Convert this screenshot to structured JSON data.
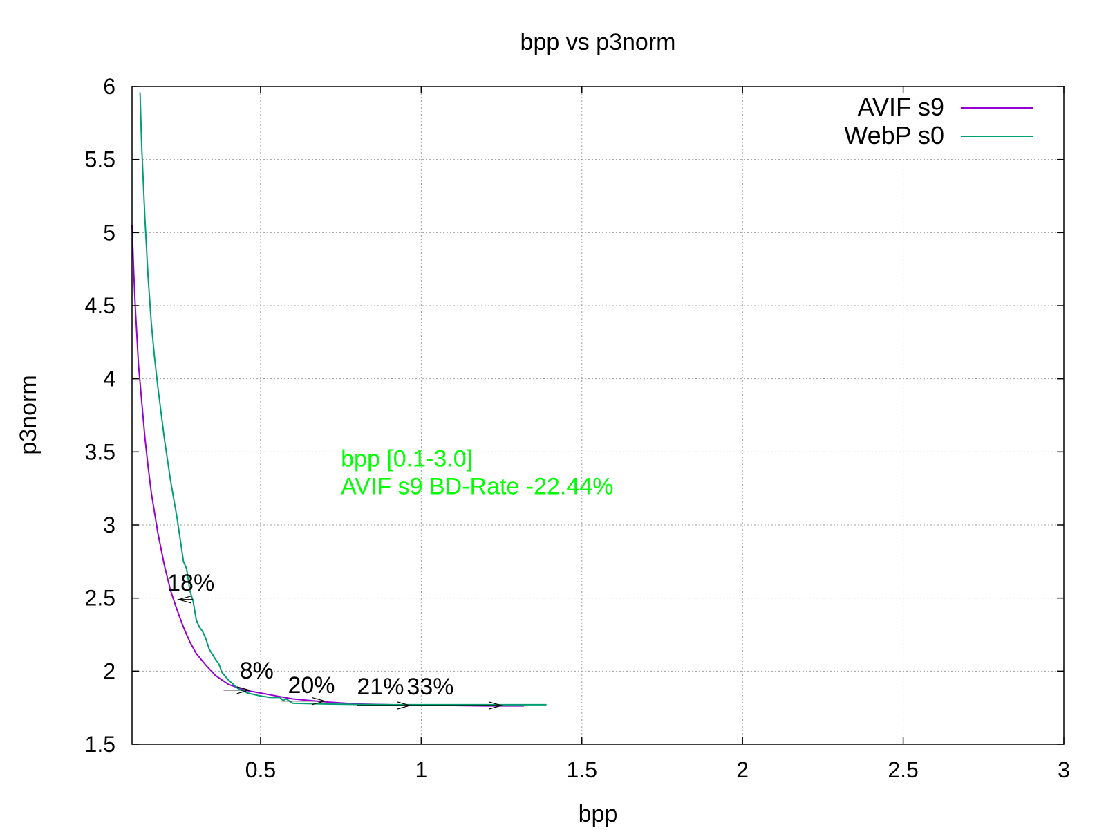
{
  "chart_data": {
    "type": "line",
    "title": "bpp vs p3norm",
    "xlabel": "bpp",
    "ylabel": "p3norm",
    "xlim": [
      0.1,
      3.0
    ],
    "ylim": [
      1.5,
      6.0
    ],
    "xticks": [
      {
        "value": 0.5,
        "label": "0.5"
      },
      {
        "value": 1.0,
        "label": "1"
      },
      {
        "value": 1.5,
        "label": "1.5"
      },
      {
        "value": 2.0,
        "label": "2"
      },
      {
        "value": 2.5,
        "label": "2.5"
      },
      {
        "value": 3.0,
        "label": "3"
      }
    ],
    "yticks": [
      {
        "value": 1.5,
        "label": "1.5"
      },
      {
        "value": 2.0,
        "label": "2"
      },
      {
        "value": 2.5,
        "label": "2.5"
      },
      {
        "value": 3.0,
        "label": "3"
      },
      {
        "value": 3.5,
        "label": "3.5"
      },
      {
        "value": 4.0,
        "label": "4"
      },
      {
        "value": 4.5,
        "label": "4.5"
      },
      {
        "value": 5.0,
        "label": "5"
      },
      {
        "value": 5.5,
        "label": "5.5"
      },
      {
        "value": 6.0,
        "label": "6"
      }
    ],
    "grid": true,
    "legend_position": "top-right",
    "series": [
      {
        "name": "AVIF s9",
        "color": "#9400d3",
        "x": [
          0.1,
          0.105,
          0.11,
          0.12,
          0.13,
          0.14,
          0.15,
          0.16,
          0.18,
          0.2,
          0.22,
          0.24,
          0.26,
          0.28,
          0.3,
          0.33,
          0.36,
          0.4,
          0.45,
          0.5,
          0.55,
          0.6,
          0.7,
          0.8,
          0.9,
          1.0,
          1.1,
          1.2,
          1.3,
          1.32
        ],
        "y": [
          5.05,
          4.75,
          4.5,
          4.1,
          3.85,
          3.6,
          3.4,
          3.22,
          2.95,
          2.73,
          2.55,
          2.42,
          2.3,
          2.2,
          2.12,
          2.04,
          1.97,
          1.91,
          1.87,
          1.85,
          1.83,
          1.81,
          1.79,
          1.775,
          1.77,
          1.765,
          1.765,
          1.762,
          1.762,
          1.762
        ]
      },
      {
        "name": "WebP s0",
        "color": "#009e73",
        "x": [
          0.125,
          0.13,
          0.14,
          0.15,
          0.16,
          0.17,
          0.18,
          0.2,
          0.22,
          0.24,
          0.26,
          0.27,
          0.28,
          0.29,
          0.3,
          0.31,
          0.32,
          0.33,
          0.34,
          0.36,
          0.37,
          0.38,
          0.4,
          0.43,
          0.46,
          0.5,
          0.53,
          0.56,
          0.57,
          0.58,
          0.6,
          0.7,
          0.8,
          0.9,
          1.0,
          1.2,
          1.39
        ],
        "y": [
          5.96,
          5.6,
          5.1,
          4.7,
          4.38,
          4.15,
          3.95,
          3.6,
          3.3,
          3.05,
          2.75,
          2.7,
          2.55,
          2.48,
          2.35,
          2.3,
          2.27,
          2.22,
          2.15,
          2.08,
          2.05,
          1.99,
          1.94,
          1.88,
          1.85,
          1.83,
          1.82,
          1.82,
          1.8,
          1.81,
          1.78,
          1.775,
          1.772,
          1.77,
          1.77,
          1.77,
          1.77
        ]
      }
    ],
    "annotations": [
      {
        "text": "18%",
        "x": 0.21,
        "y": 2.55
      },
      {
        "text": "8%",
        "x": 0.435,
        "y": 1.95
      },
      {
        "text": "20%",
        "x": 0.585,
        "y": 1.85
      },
      {
        "text": "21%",
        "x": 0.8,
        "y": 1.84
      },
      {
        "text": "33%",
        "x": 0.955,
        "y": 1.84
      }
    ],
    "arrows": [
      {
        "x_from": 0.29,
        "x_to": 0.245,
        "y": 2.49
      },
      {
        "x_from": 0.385,
        "x_to": 0.465,
        "y": 1.87
      },
      {
        "x_from": 0.565,
        "x_to": 0.7,
        "y": 1.795
      },
      {
        "x_from": 0.8,
        "x_to": 0.965,
        "y": 1.765
      },
      {
        "x_from": 0.965,
        "x_to": 1.25,
        "y": 1.765
      }
    ],
    "bd_rate_text": {
      "line1": "bpp [0.1-3.0]",
      "line2": "AVIF s9 BD-Rate -22.44%",
      "color": "#00ff00",
      "x": 0.75,
      "y": 3.4
    }
  }
}
